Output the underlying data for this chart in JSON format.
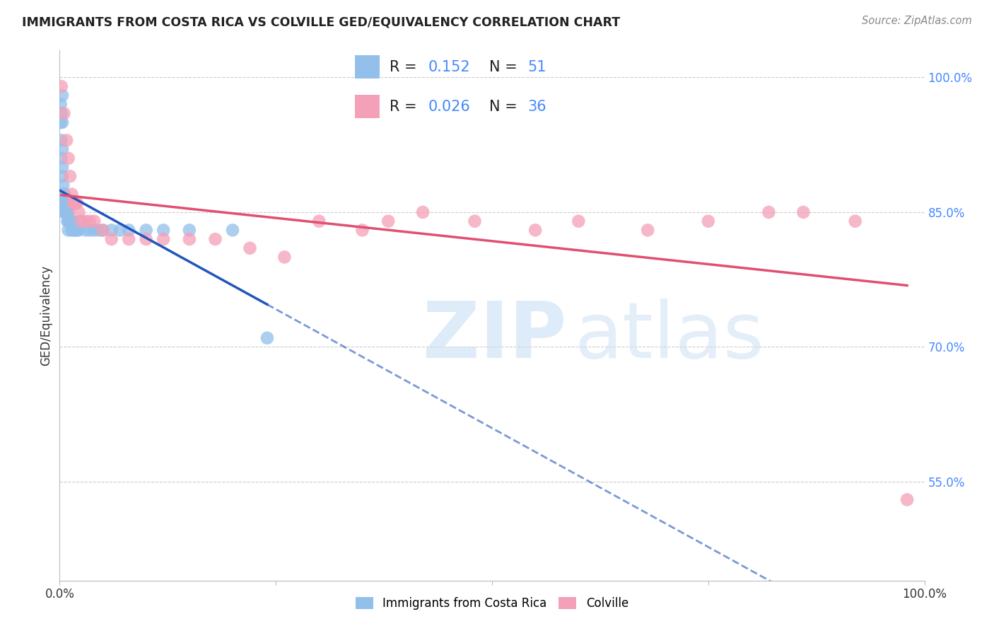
{
  "title": "IMMIGRANTS FROM COSTA RICA VS COLVILLE GED/EQUIVALENCY CORRELATION CHART",
  "source": "Source: ZipAtlas.com",
  "ylabel": "GED/Equivalency",
  "ytick_labels": [
    "100.0%",
    "85.0%",
    "70.0%",
    "55.0%"
  ],
  "ytick_values": [
    1.0,
    0.85,
    0.7,
    0.55
  ],
  "xlim": [
    0.0,
    1.0
  ],
  "ylim": [
    0.44,
    1.03
  ],
  "blue_color": "#92C0EA",
  "pink_color": "#F4A0B8",
  "blue_line_color": "#2255BB",
  "pink_line_color": "#E05070",
  "grid_color": "#CCCCCC",
  "legend_label_blue": "Immigrants from Costa Rica",
  "legend_label_pink": "Colville",
  "blue_R": "0.152",
  "blue_N": "51",
  "pink_R": "0.026",
  "pink_N": "36",
  "blue_x": [
    0.001,
    0.001,
    0.002,
    0.002,
    0.002,
    0.003,
    0.003,
    0.003,
    0.003,
    0.003,
    0.004,
    0.004,
    0.004,
    0.005,
    0.005,
    0.005,
    0.006,
    0.006,
    0.006,
    0.007,
    0.007,
    0.008,
    0.008,
    0.009,
    0.009,
    0.01,
    0.01,
    0.01,
    0.011,
    0.012,
    0.013,
    0.014,
    0.015,
    0.016,
    0.018,
    0.02,
    0.022,
    0.025,
    0.03,
    0.035,
    0.04,
    0.045,
    0.05,
    0.06,
    0.07,
    0.08,
    0.1,
    0.12,
    0.15,
    0.2,
    0.24
  ],
  "blue_y": [
    0.97,
    0.95,
    0.96,
    0.93,
    0.91,
    0.98,
    0.95,
    0.92,
    0.9,
    0.89,
    0.88,
    0.87,
    0.86,
    0.87,
    0.86,
    0.85,
    0.87,
    0.86,
    0.85,
    0.86,
    0.85,
    0.86,
    0.85,
    0.85,
    0.84,
    0.85,
    0.84,
    0.83,
    0.84,
    0.84,
    0.84,
    0.83,
    0.84,
    0.83,
    0.83,
    0.83,
    0.83,
    0.84,
    0.83,
    0.83,
    0.83,
    0.83,
    0.83,
    0.83,
    0.83,
    0.83,
    0.83,
    0.83,
    0.83,
    0.83,
    0.71
  ],
  "pink_x": [
    0.002,
    0.005,
    0.008,
    0.01,
    0.012,
    0.014,
    0.016,
    0.018,
    0.02,
    0.022,
    0.025,
    0.03,
    0.035,
    0.04,
    0.05,
    0.06,
    0.08,
    0.1,
    0.12,
    0.15,
    0.18,
    0.22,
    0.26,
    0.3,
    0.35,
    0.38,
    0.42,
    0.48,
    0.55,
    0.6,
    0.68,
    0.75,
    0.82,
    0.86,
    0.92,
    0.98
  ],
  "pink_y": [
    0.99,
    0.96,
    0.93,
    0.91,
    0.89,
    0.87,
    0.86,
    0.86,
    0.86,
    0.85,
    0.84,
    0.84,
    0.84,
    0.84,
    0.83,
    0.82,
    0.82,
    0.82,
    0.82,
    0.82,
    0.82,
    0.81,
    0.8,
    0.84,
    0.83,
    0.84,
    0.85,
    0.84,
    0.83,
    0.84,
    0.83,
    0.84,
    0.85,
    0.85,
    0.84,
    0.53
  ]
}
